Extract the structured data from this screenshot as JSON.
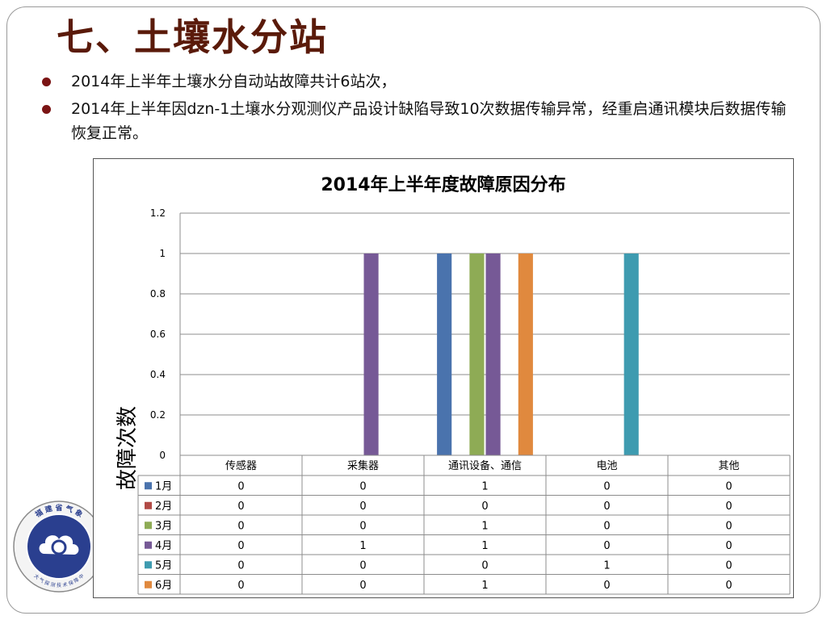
{
  "slide": {
    "title": "七、土壤水分站",
    "bullets": [
      "2014年上半年土壤水分自动站故障共计6站次，",
      "2014年上半年因dzn-1土壤水分观测仪产品设计缺陷导致10次数据传输异常，经重启通讯模块后数据传输恢复正常。"
    ]
  },
  "logo": {
    "ring_text": "福 建 省 气 象",
    "bottom_text": "大 气 探 测 技 术 保 障 中"
  },
  "colors": {
    "title": "#5a1a0a",
    "bullet": "#7b1414",
    "series": [
      "#4a73ad",
      "#b14a45",
      "#8eab55",
      "#765996",
      "#3e9bb0",
      "#e0893e"
    ]
  },
  "chart_data": {
    "type": "bar",
    "title": "2014年上半年度故障原因分布",
    "ylabel": "故障次数",
    "xlabel": "",
    "ylim": [
      0,
      1.2
    ],
    "yticks": [
      "0",
      "0.2",
      "0.4",
      "0.6",
      "0.8",
      "1",
      "1.2"
    ],
    "categories": [
      "传感器",
      "采集器",
      "通讯设备、通信",
      "电池",
      "其他"
    ],
    "series": [
      {
        "name": "1月",
        "values": [
          0,
          0,
          1,
          0,
          0
        ],
        "labels": [
          "0",
          "0",
          "1",
          "0",
          "0"
        ]
      },
      {
        "name": "2月",
        "values": [
          0,
          0,
          0,
          0,
          0
        ],
        "labels": [
          "0",
          "0",
          "0",
          "0",
          "0"
        ]
      },
      {
        "name": "3月",
        "values": [
          0,
          0,
          1,
          0,
          0
        ],
        "labels": [
          "0",
          "0",
          "1",
          "0",
          "0"
        ]
      },
      {
        "name": "4月",
        "values": [
          0,
          1,
          1,
          0,
          0
        ],
        "labels": [
          "0",
          "1",
          "1",
          "0",
          "0"
        ]
      },
      {
        "name": "5月",
        "values": [
          0,
          0,
          0,
          1,
          0
        ],
        "labels": [
          "0",
          "0",
          "0",
          "1",
          "0"
        ]
      },
      {
        "name": "6月",
        "values": [
          0,
          0,
          1,
          0,
          0
        ],
        "labels": [
          "0",
          "0",
          "1",
          "0",
          "0"
        ]
      }
    ],
    "grid": true,
    "legend": "data-table"
  }
}
